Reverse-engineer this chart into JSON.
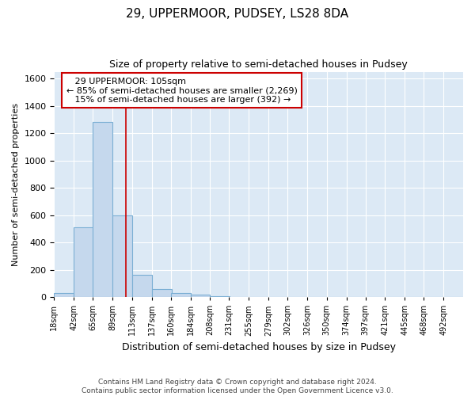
{
  "title": "29, UPPERMOOR, PUDSEY, LS28 8DA",
  "subtitle": "Size of property relative to semi-detached houses in Pudsey",
  "xlabel": "Distribution of semi-detached houses by size in Pudsey",
  "ylabel": "Number of semi-detached properties",
  "footer_line1": "Contains HM Land Registry data © Crown copyright and database right 2024.",
  "footer_line2": "Contains public sector information licensed under the Open Government Licence v3.0.",
  "bin_labels": [
    "18sqm",
    "42sqm",
    "65sqm",
    "89sqm",
    "113sqm",
    "137sqm",
    "160sqm",
    "184sqm",
    "208sqm",
    "231sqm",
    "255sqm",
    "279sqm",
    "302sqm",
    "326sqm",
    "350sqm",
    "374sqm",
    "397sqm",
    "421sqm",
    "445sqm",
    "468sqm",
    "492sqm"
  ],
  "bin_lefts": [
    18,
    42,
    65,
    89,
    113,
    137,
    160,
    184,
    208,
    231,
    255,
    279,
    302,
    326,
    350,
    374,
    397,
    421,
    445,
    468,
    492
  ],
  "bin_width": 24,
  "bar_values": [
    30,
    510,
    1280,
    600,
    165,
    60,
    30,
    20,
    5,
    0,
    0,
    0,
    0,
    0,
    0,
    0,
    0,
    0,
    0,
    0,
    0
  ],
  "bar_color": "#c5d8ed",
  "bar_edge_color": "#7bafd4",
  "property_size": 105,
  "property_label": "29 UPPERMOOR: 105sqm",
  "smaller_pct": 85,
  "smaller_count": 2269,
  "larger_pct": 15,
  "larger_count": 392,
  "vline_color": "#cc0000",
  "ylim": [
    0,
    1650
  ],
  "yticks": [
    0,
    200,
    400,
    600,
    800,
    1000,
    1200,
    1400,
    1600
  ],
  "background_color": "#dce9f5",
  "grid_color": "#ffffff",
  "fig_bg_color": "#ffffff"
}
